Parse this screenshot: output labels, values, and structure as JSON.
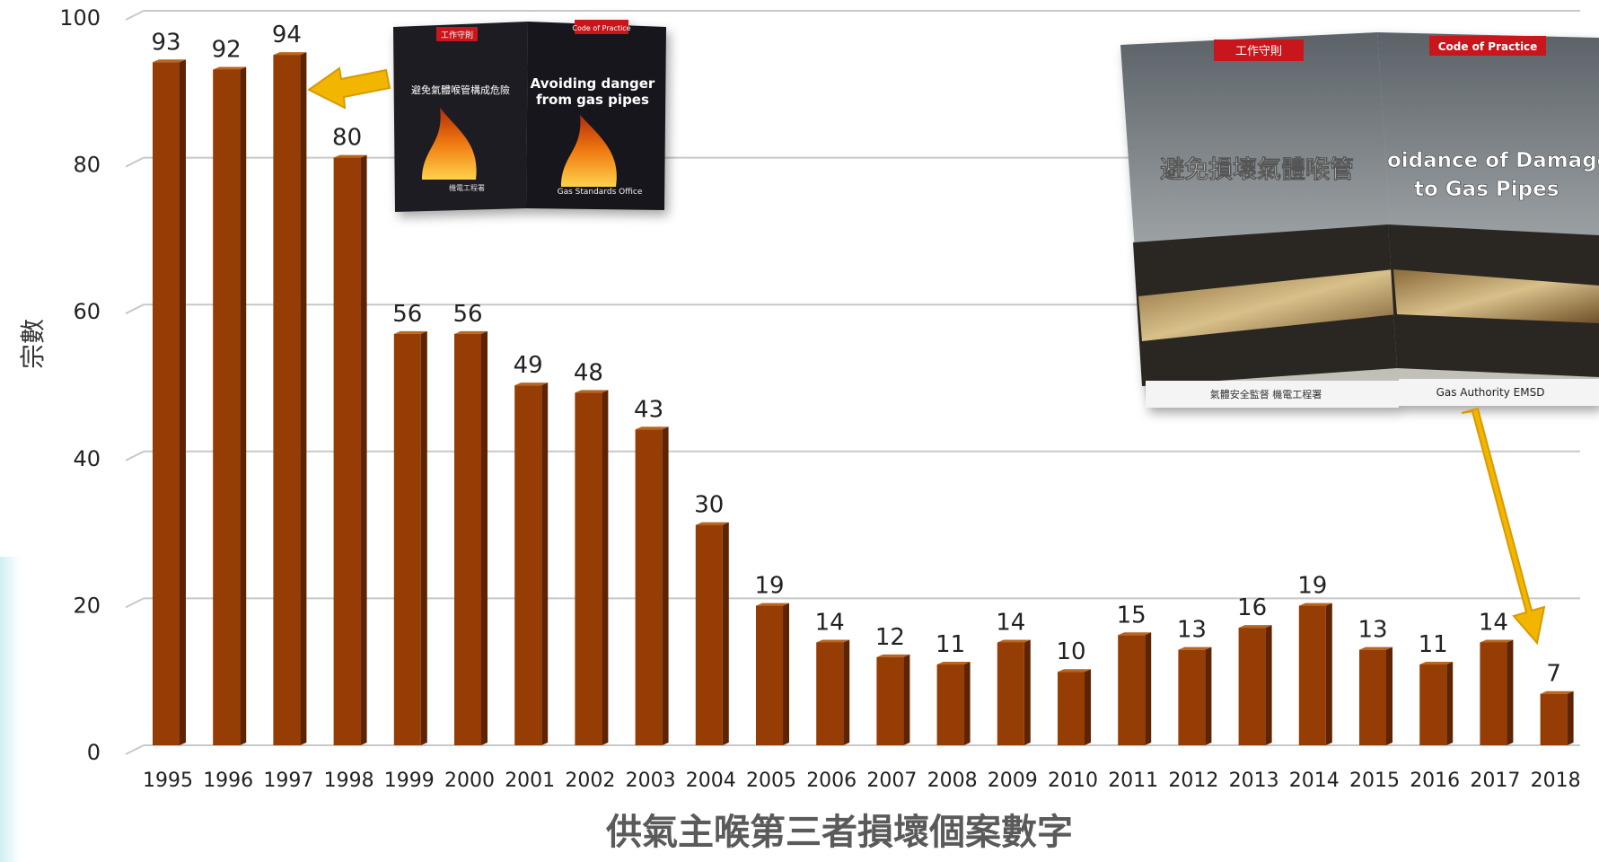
{
  "chart_data": {
    "type": "bar",
    "title": "供氣主喉第三者損壞個案數字",
    "xlabel": "",
    "ylabel": "宗數",
    "ylim": [
      0,
      100
    ],
    "yticks": [
      0,
      20,
      40,
      60,
      80,
      100
    ],
    "grid": true,
    "categories": [
      "1995",
      "1996",
      "1997",
      "1998",
      "1999",
      "2000",
      "2001",
      "2002",
      "2003",
      "2004",
      "2005",
      "2006",
      "2007",
      "2008",
      "2009",
      "2010",
      "2011",
      "2012",
      "2013",
      "2014",
      "2015",
      "2016",
      "2017",
      "2018"
    ],
    "values": [
      93,
      92,
      94,
      80,
      56,
      56,
      49,
      48,
      43,
      30,
      19,
      14,
      12,
      11,
      14,
      10,
      15,
      13,
      16,
      19,
      13,
      11,
      14,
      7
    ],
    "colors": {
      "bar_front": "#953d04",
      "bar_side": "#5e2402",
      "bar_top": "#b9651e",
      "arrow": "#f2b600"
    }
  },
  "booklet_small": {
    "left_cover": {
      "badge": "工作守則",
      "title": "避免氣體喉管構成危險",
      "footer": "機電工程署"
    },
    "right_cover": {
      "badge": "Code of Practice",
      "title_line1": "Avoiding danger",
      "title_line2": "from gas pipes",
      "footer": "Gas Standards Office"
    }
  },
  "booklet_large": {
    "left_cover": {
      "badge": "工作守則",
      "title": "避免損壞氣體喉管",
      "footer": "氣體安全監督 機電工程署"
    },
    "right_cover": {
      "badge": "Code of Practice",
      "title_line1": "oidance of Damage",
      "title_line2": "to Gas Pipes",
      "footer": "Gas Authority EMSD"
    }
  }
}
